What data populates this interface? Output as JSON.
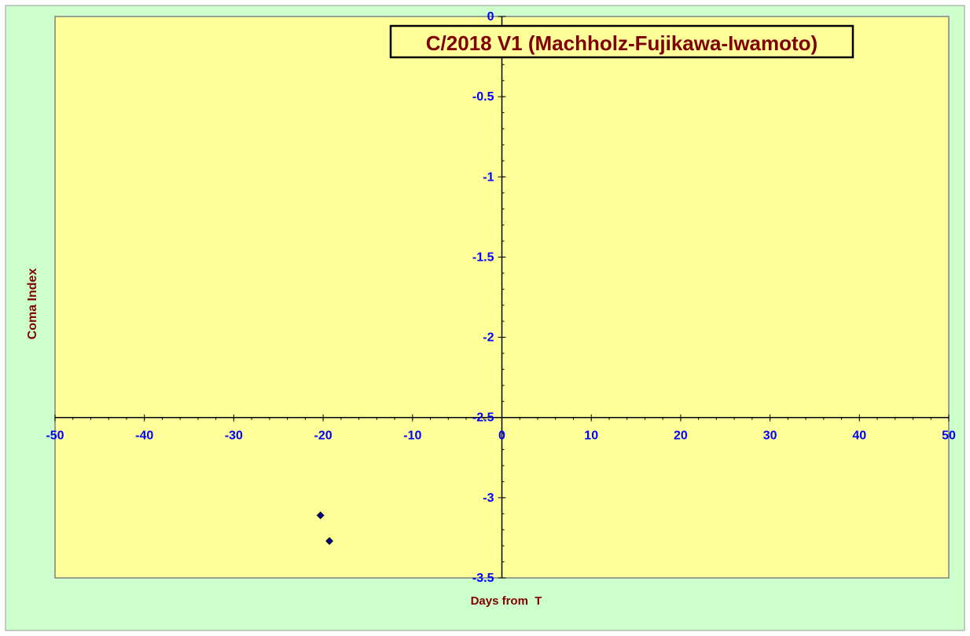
{
  "colors": {
    "chart_area": "#CCFFCC",
    "plot_area": "#FFFF99",
    "axis": "#000000",
    "tick_label": "#0000FF",
    "axis_title": "#800000",
    "title_text": "#800000",
    "marker": "#000080"
  },
  "chart_data": {
    "type": "scatter",
    "title": "C/2018 V1 (Machholz-Fujikawa-Iwamoto)",
    "xlabel": "Days from  T",
    "ylabel": "Coma Index",
    "xlim": [
      -50,
      50
    ],
    "ylim": [
      -3.5,
      0
    ],
    "x_crosses_y_at": -2.5,
    "y_crosses_x_at": 0,
    "x_ticks": [
      "-50",
      "-40",
      "-30",
      "-20",
      "-10",
      "0",
      "10",
      "20",
      "30",
      "40",
      "50"
    ],
    "y_ticks": [
      "0",
      "-0.5",
      "-1",
      "-1.5",
      "-2",
      "-2.5",
      "-3",
      "-3.5"
    ],
    "grid": false,
    "legend": "none",
    "marker": "diamond",
    "series": [
      {
        "points": [
          {
            "x": -20.3,
            "y": -3.11
          },
          {
            "x": -19.3,
            "y": -3.27
          }
        ]
      }
    ]
  }
}
